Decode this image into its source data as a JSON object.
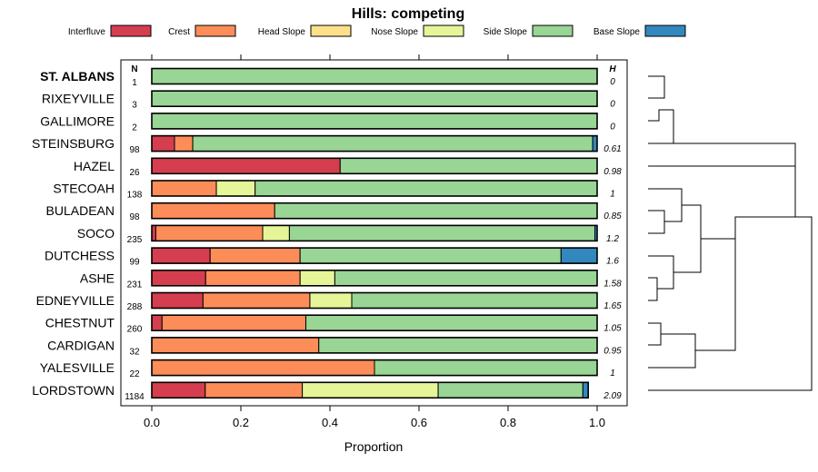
{
  "chart_data": {
    "type": "bar",
    "orientation": "horizontal",
    "stacked": true,
    "title": "Hills: competing",
    "xlabel": "Proportion",
    "ylabel": "",
    "xlim": [
      0,
      1
    ],
    "x_ticks": [
      "0.0",
      "0.2",
      "0.4",
      "0.6",
      "0.8",
      "1.0"
    ],
    "x_tick_values": [
      0,
      0.2,
      0.4,
      0.6,
      0.8,
      1.0
    ],
    "n_header": "N",
    "h_header": "H",
    "legend_position": "top",
    "series": [
      {
        "name": "Interfluve",
        "color": "#D53E4F"
      },
      {
        "name": "Crest",
        "color": "#FC8D59"
      },
      {
        "name": "Head Slope",
        "color": "#FEE08B"
      },
      {
        "name": "Nose Slope",
        "color": "#E6F598"
      },
      {
        "name": "Side Slope",
        "color": "#99D594"
      },
      {
        "name": "Base Slope",
        "color": "#3288BD"
      }
    ],
    "categories": [
      "ST. ALBANS",
      "RIXEYVILLE",
      "GALLIMORE",
      "STEINSBURG",
      "HAZEL",
      "STECOAH",
      "BULADEAN",
      "SOCO",
      "DUTCHESS",
      "ASHE",
      "EDNEYVILLE",
      "CHESTNUT",
      "CARDIGAN",
      "YALESVILLE",
      "LORDSTOWN"
    ],
    "bold_category": "ST. ALBANS",
    "rows": [
      {
        "name": "ST. ALBANS",
        "n": "1",
        "h": "0",
        "values": [
          0,
          0,
          0,
          0,
          1.0,
          0
        ]
      },
      {
        "name": "RIXEYVILLE",
        "n": "3",
        "h": "0",
        "values": [
          0,
          0,
          0,
          0,
          1.0,
          0
        ]
      },
      {
        "name": "GALLIMORE",
        "n": "2",
        "h": "0",
        "values": [
          0,
          0,
          0,
          0,
          1.0,
          0
        ]
      },
      {
        "name": "STEINSBURG",
        "n": "98",
        "h": "0.61",
        "values": [
          0.051,
          0.041,
          0,
          0,
          0.898,
          0.01
        ]
      },
      {
        "name": "HAZEL",
        "n": "26",
        "h": "0.98",
        "values": [
          0.423,
          0,
          0,
          0,
          0.577,
          0
        ]
      },
      {
        "name": "STECOAH",
        "n": "138",
        "h": "1",
        "values": [
          0,
          0.145,
          0,
          0.087,
          0.768,
          0
        ]
      },
      {
        "name": "BULADEAN",
        "n": "98",
        "h": "0.85",
        "values": [
          0,
          0.276,
          0,
          0,
          0.724,
          0
        ]
      },
      {
        "name": "SOCO",
        "n": "235",
        "h": "1.2",
        "values": [
          0.009,
          0.24,
          0,
          0.06,
          0.686,
          0.005
        ]
      },
      {
        "name": "DUTCHESS",
        "n": "99",
        "h": "1.6",
        "values": [
          0.131,
          0.202,
          0,
          0,
          0.586,
          0.081
        ]
      },
      {
        "name": "ASHE",
        "n": "231",
        "h": "1.58",
        "values": [
          0.121,
          0.212,
          0,
          0.078,
          0.589,
          0
        ]
      },
      {
        "name": "EDNEYVILLE",
        "n": "288",
        "h": "1.65",
        "values": [
          0.115,
          0.24,
          0,
          0.094,
          0.551,
          0
        ]
      },
      {
        "name": "CHESTNUT",
        "n": "260",
        "h": "1.05",
        "values": [
          0.023,
          0.323,
          0,
          0,
          0.654,
          0
        ]
      },
      {
        "name": "CARDIGAN",
        "n": "32",
        "h": "0.95",
        "values": [
          0,
          0.375,
          0,
          0,
          0.625,
          0
        ]
      },
      {
        "name": "YALESVILLE",
        "n": "22",
        "h": "1",
        "values": [
          0,
          0.5,
          0,
          0,
          0.5,
          0
        ]
      },
      {
        "name": "LORDSTOWN",
        "n": "1184",
        "h": "2.09",
        "values": [
          0.12,
          0.218,
          0,
          0.305,
          0.325,
          0.012
        ]
      }
    ]
  }
}
